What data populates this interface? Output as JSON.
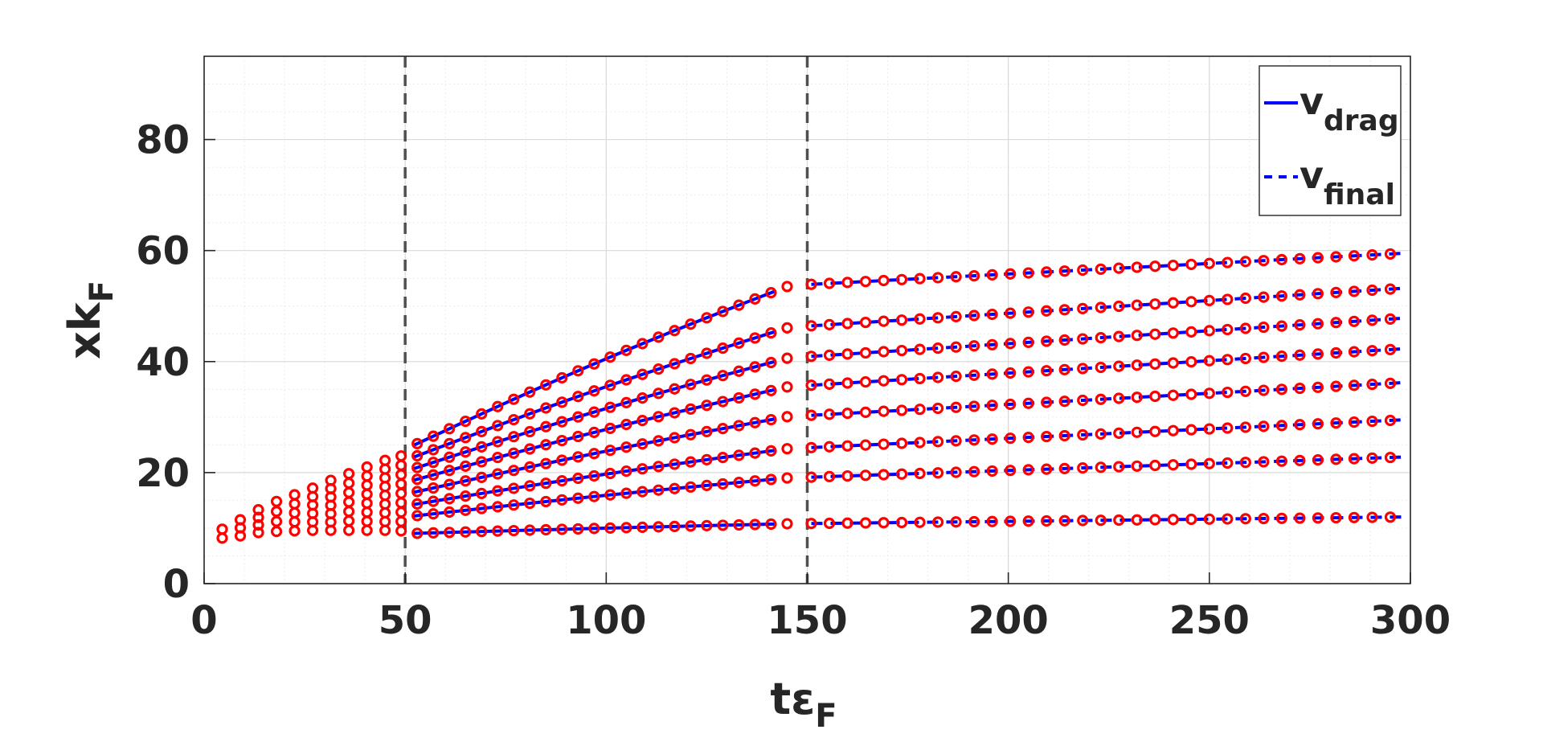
{
  "chart_data": {
    "type": "scatter",
    "xlabel": {
      "main": "tε",
      "sub": "F"
    },
    "ylabel": {
      "main": "xk",
      "sub": "F"
    },
    "xlim": [
      0,
      300
    ],
    "ylim": [
      0,
      95
    ],
    "x_ticks": [
      0,
      50,
      100,
      150,
      200,
      250,
      300
    ],
    "y_ticks": [
      0,
      20,
      40,
      60,
      80
    ],
    "grid": true,
    "minor_grid": true,
    "legend_position": "top-right",
    "vertical_markers": [
      50,
      150
    ],
    "colors": {
      "markers": "#ff0000",
      "lines": "#0000ff",
      "markers_lines": "#505050",
      "axis": "#262626",
      "grid": "#d9d9d9"
    },
    "legend": [
      {
        "main": "v",
        "sub": "drag",
        "style": "solid"
      },
      {
        "main": "v",
        "sub": "final",
        "style": "dashed"
      }
    ],
    "marker_series": {
      "name": "",
      "marker": "open-circle",
      "phase1_x": [
        4.5,
        9,
        13.5,
        18,
        22.5,
        27,
        31.5,
        36,
        40.5,
        45,
        49
      ],
      "phase1_top": [
        9.8,
        11.5,
        13.3,
        14.8,
        16,
        17.2,
        18.6,
        19.8,
        21,
        22.2,
        23
      ],
      "phase1_bottom": [
        8.2,
        8.6,
        9.2,
        9.4,
        9.5,
        9.6,
        9.6,
        9.6,
        9.6,
        9.6,
        9.5
      ],
      "phase2_x_start": 53,
      "phase2_x_end": 145,
      "phase2_step": 4,
      "phase3_x_start": 151,
      "phase3_x_end": 298,
      "phase3_step": 4.5,
      "tracks": [
        {
          "start": 24.2,
          "mid_end": 53.8,
          "end": 59.5
        },
        {
          "start": 22.2,
          "mid_end": 46.3,
          "end": 53.2
        },
        {
          "start": 20.2,
          "mid_end": 40.8,
          "end": 47.8
        },
        {
          "start": 18.2,
          "mid_end": 35.6,
          "end": 42.3
        },
        {
          "start": 16.1,
          "mid_end": 30.2,
          "end": 36.2
        },
        {
          "start": 14.0,
          "mid_end": 24.4,
          "end": 29.5
        },
        {
          "start": 12.0,
          "mid_end": 19.1,
          "end": 22.8
        },
        {
          "start": 9.0,
          "mid_end": 10.8,
          "end": 12.0
        }
      ]
    },
    "line_series": [
      {
        "name": "v_drag",
        "style": "solid",
        "x_range": [
          52,
          142
        ]
      },
      {
        "name": "v_final",
        "style": "dashed",
        "x_range": [
          151,
          298
        ]
      }
    ]
  }
}
